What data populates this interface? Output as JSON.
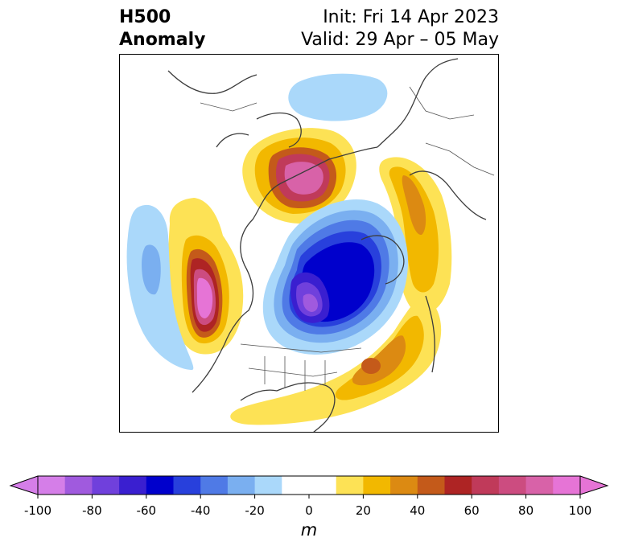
{
  "header": {
    "title_line1": "H500",
    "title_line2": "Anomaly",
    "init": "Init: Fri 14 Apr 2023",
    "valid": "Valid: 29 Apr – 05 May"
  },
  "map": {
    "projection": "north-polar stereographic",
    "field": "500 hPa geopotential height anomaly"
  },
  "colorbar": {
    "unit": "m",
    "range": [
      -100,
      100
    ],
    "levels": [
      -100,
      -90,
      -80,
      -70,
      -60,
      -50,
      -40,
      -30,
      -20,
      -10,
      10,
      20,
      30,
      40,
      50,
      60,
      70,
      80,
      90,
      100
    ],
    "colors": [
      "#d57ee8",
      "#a05ade",
      "#7040dc",
      "#3a1fd0",
      "#0000cc",
      "#2840dc",
      "#4f7ae6",
      "#7aaff0",
      "#aad8fa",
      "#ffffff",
      "#fde255",
      "#f2b800",
      "#dc8a12",
      "#c45a1a",
      "#ae2424",
      "#c03a5a",
      "#cc4c80",
      "#d862a8",
      "#e674d6"
    ],
    "tick_labels": [
      "-100",
      "-80",
      "-60",
      "-40",
      "-20",
      "0",
      "20",
      "40",
      "60",
      "80",
      "100"
    ],
    "extend": "both"
  }
}
